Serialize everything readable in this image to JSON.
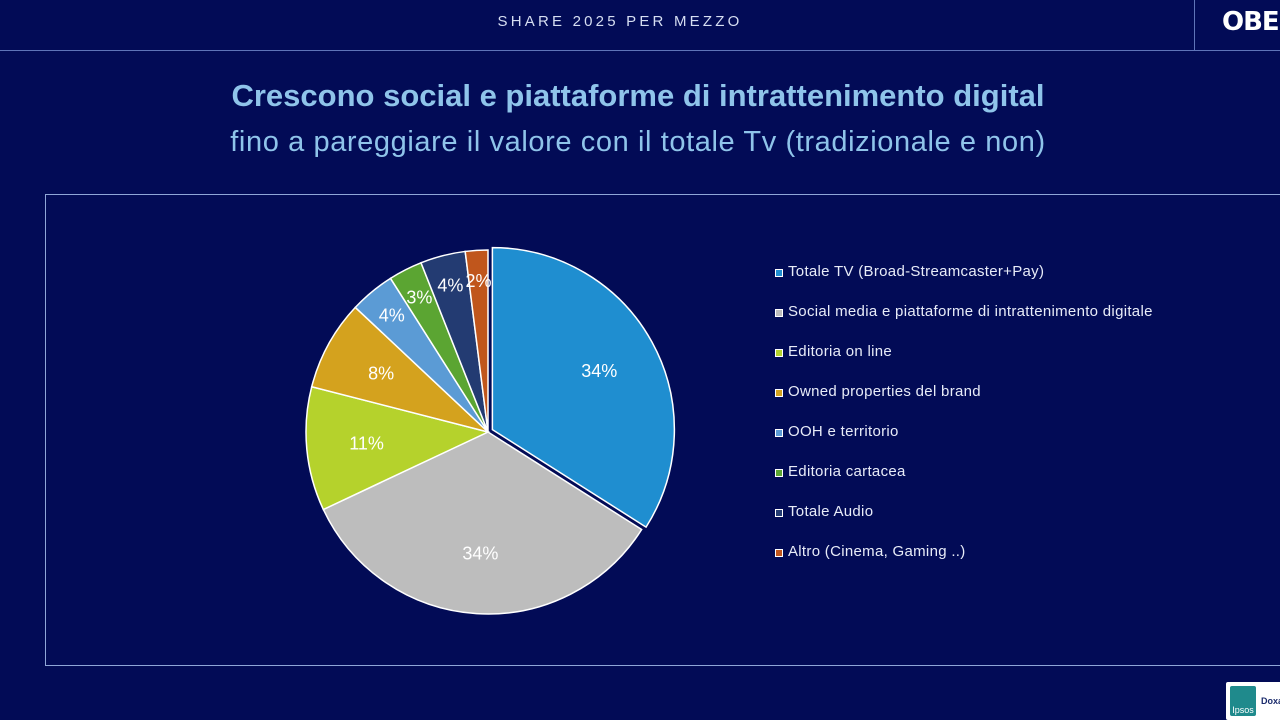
{
  "header": {
    "section_title": "SHARE 2025 PER MEZZO",
    "logo_text": "OBE"
  },
  "headline": "Crescono social e piattaforme di intrattenimento digital",
  "subheadline": "fino a pareggiare il valore con il totale Tv (tradizionale e non)",
  "badge": {
    "mark": "Ipsos",
    "text": "Doxa"
  },
  "chart_data": {
    "type": "pie",
    "title": "",
    "legend_position": "right",
    "slices": [
      {
        "label": "Totale TV (Broad-Streamcaster+Pay)",
        "value": 34,
        "display": "34%",
        "color": "#1F8ED0"
      },
      {
        "label": "Social media e piattaforme di intrattenimento digitale",
        "value": 34,
        "display": "34%",
        "color": "#BDBDBD"
      },
      {
        "label": "Editoria on line",
        "value": 11,
        "display": "11%",
        "color": "#B5D22C"
      },
      {
        "label": "Owned properties del brand",
        "value": 8,
        "display": "8%",
        "color": "#D4A21E"
      },
      {
        "label": "OOH e territorio",
        "value": 4,
        "display": "4%",
        "color": "#5B9BD5"
      },
      {
        "label": "Editoria cartacea",
        "value": 3,
        "display": "3%",
        "color": "#5BA532"
      },
      {
        "label": "Totale Audio",
        "value": 4,
        "display": "4%",
        "color": "#233B72"
      },
      {
        "label": "Altro (Cinema, Gaming ..)",
        "value": 2,
        "display": "2%",
        "color": "#C0561C"
      }
    ]
  }
}
